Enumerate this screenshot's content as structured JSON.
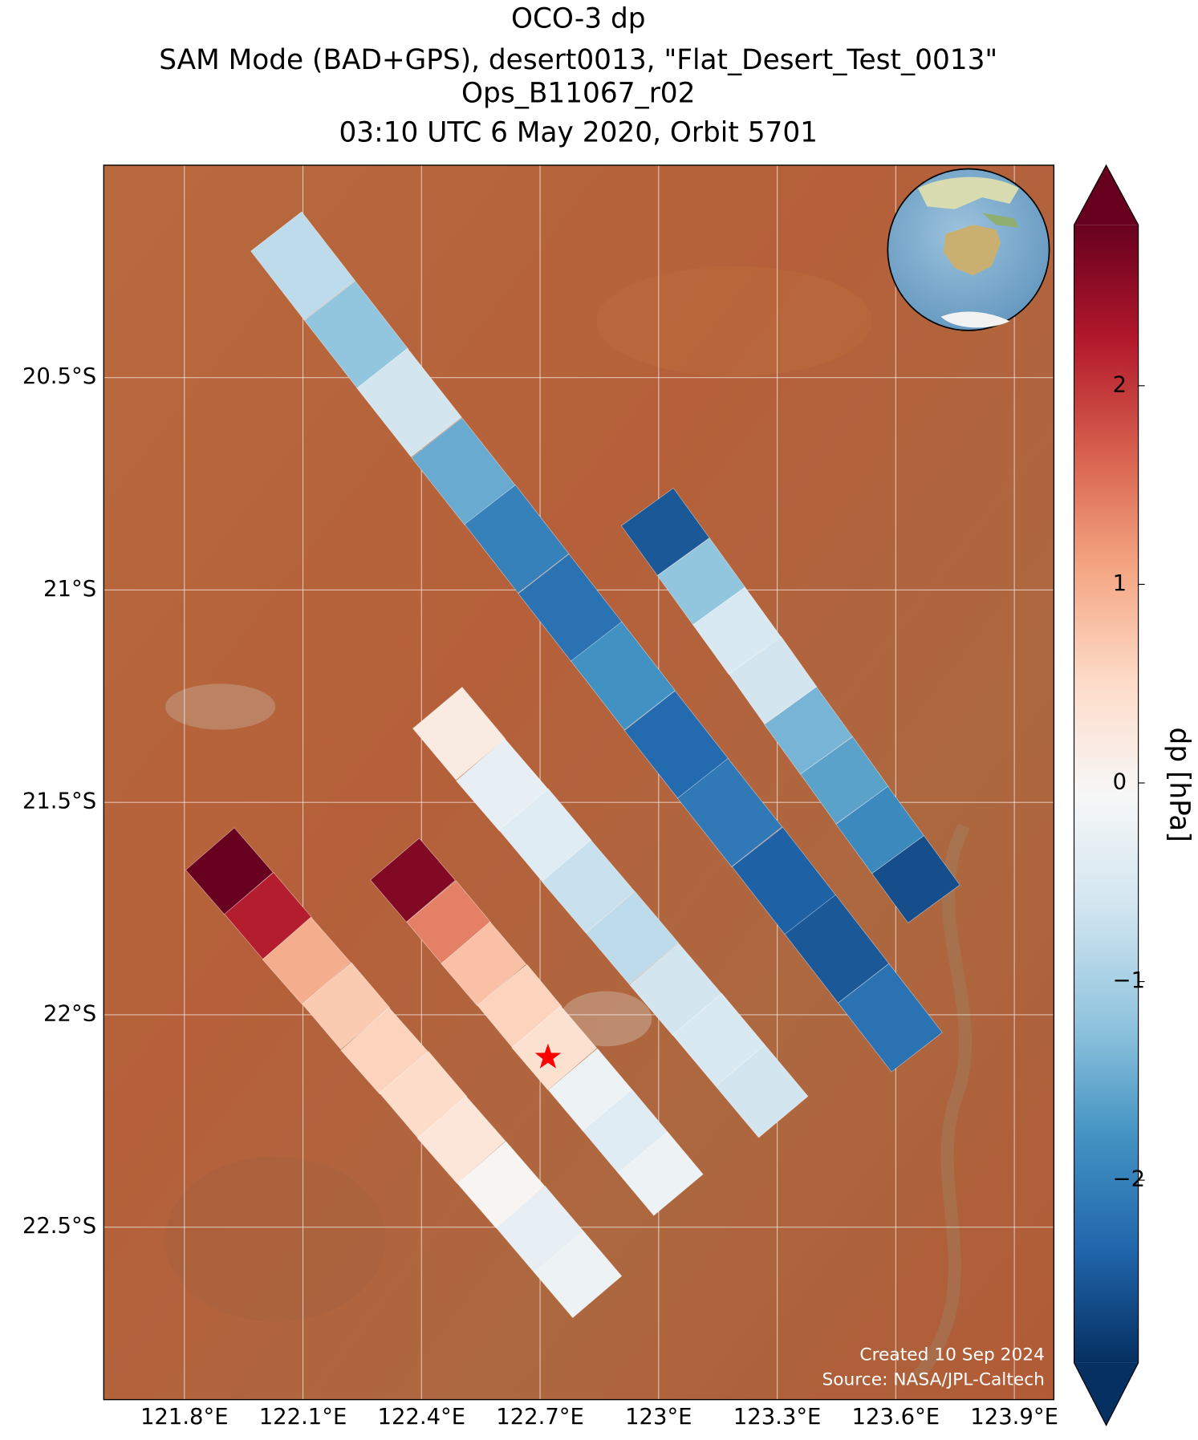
{
  "chart_data": {
    "type": "swath-map",
    "title": [
      "OCO-3 dp",
      "SAM Mode (BAD+GPS), desert0013, \"Flat_Desert_Test_0013\"",
      "Ops_B11067_r02",
      "03:10 UTC 6 May 2020, Orbit 5701"
    ],
    "xlim": [
      121.596,
      124.0
    ],
    "ylim": [
      -20.0,
      -22.906
    ],
    "xticks": [
      {
        "value": 121.8,
        "label": "121.8°E"
      },
      {
        "value": 122.1,
        "label": "122.1°E"
      },
      {
        "value": 122.4,
        "label": "122.4°E"
      },
      {
        "value": 122.7,
        "label": "122.7°E"
      },
      {
        "value": 123.0,
        "label": "123°E"
      },
      {
        "value": 123.3,
        "label": "123.3°E"
      },
      {
        "value": 123.6,
        "label": "123.6°E"
      },
      {
        "value": 123.9,
        "label": "123.9°E"
      }
    ],
    "yticks": [
      {
        "value": -20.5,
        "label": "20.5°S"
      },
      {
        "value": -21.0,
        "label": "21°S"
      },
      {
        "value": -21.5,
        "label": "21.5°S"
      },
      {
        "value": -22.0,
        "label": "22°S"
      },
      {
        "value": -22.5,
        "label": "22.5°S"
      }
    ],
    "grid": true,
    "colormap": "RdBu_r",
    "colorbar_label": "dp [hPa]",
    "clim": [
      -2.92,
      2.81
    ],
    "cticks": [
      {
        "value": -2,
        "label": "−2"
      },
      {
        "value": -1,
        "label": "−1"
      },
      0,
      1,
      2
    ],
    "site": {
      "lon": 122.72,
      "lat": -22.1
    },
    "series": [
      {
        "lon": [
          122.1,
          122.235,
          122.369,
          122.506,
          122.641,
          122.776,
          122.91,
          123.045,
          123.18,
          123.317,
          123.451,
          123.586
        ],
        "lat": [
          -20.237,
          -20.399,
          -20.559,
          -20.721,
          -20.88,
          -21.042,
          -21.202,
          -21.364,
          -21.524,
          -21.685,
          -21.845,
          -22.007
        ],
        "values": [
          -0.8,
          -1.2,
          -0.6,
          -1.5,
          -2.0,
          -2.2,
          -1.8,
          -2.3,
          -2.1,
          -2.4,
          -2.5,
          -2.2
        ]
      },
      {
        "lon": [
          123.017,
          123.108,
          123.198,
          123.289,
          123.379,
          123.47,
          123.56,
          123.651
        ],
        "lat": [
          -20.863,
          -20.98,
          -21.096,
          -21.213,
          -21.331,
          -21.448,
          -21.565,
          -21.681
        ],
        "values": [
          -2.5,
          -1.2,
          -0.5,
          -0.6,
          -1.4,
          -1.6,
          -1.9,
          -2.6
        ]
      },
      {
        "lon": [
          122.495,
          122.604,
          122.713,
          122.822,
          122.933,
          123.043,
          123.152,
          123.261
        ],
        "lat": [
          -21.338,
          -21.459,
          -21.577,
          -21.698,
          -21.819,
          -21.94,
          -22.059,
          -22.18
        ],
        "values": [
          0.2,
          -0.3,
          -0.4,
          -0.7,
          -0.8,
          -0.6,
          -0.5,
          -0.6
        ]
      },
      {
        "lon": [
          122.378,
          122.469,
          122.557,
          122.648,
          122.736,
          122.827,
          122.915,
          123.005
        ],
        "lat": [
          -21.683,
          -21.782,
          -21.88,
          -21.979,
          -22.078,
          -22.177,
          -22.274,
          -22.374
        ],
        "values": [
          2.6,
          1.4,
          0.8,
          0.6,
          0.4,
          -0.2,
          -0.4,
          -0.2
        ]
      },
      {
        "lon": [
          121.914,
          122.012,
          122.109,
          122.209,
          122.306,
          122.404,
          122.501,
          122.601,
          122.699,
          122.796
        ],
        "lat": [
          -21.662,
          -21.767,
          -21.873,
          -21.979,
          -22.085,
          -22.188,
          -22.294,
          -22.4,
          -22.505,
          -22.611
        ],
        "values": [
          2.8,
          2.2,
          1.0,
          0.7,
          0.6,
          0.5,
          0.3,
          0.0,
          -0.3,
          -0.2
        ]
      }
    ],
    "annotations": [
      "Created 10 Sep 2024",
      "Source: NASA/JPL-Caltech"
    ]
  }
}
